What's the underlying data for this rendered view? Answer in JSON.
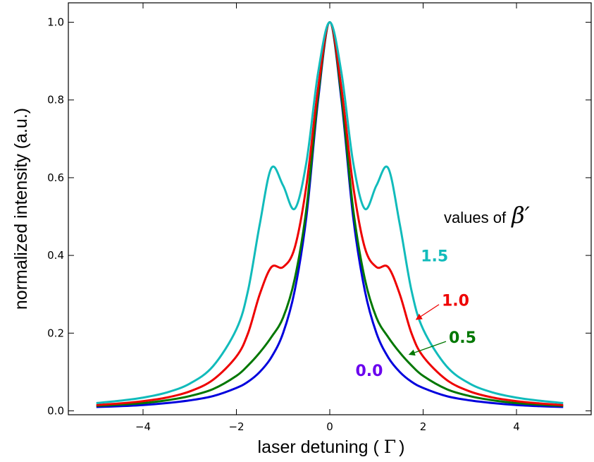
{
  "chart_data": {
    "type": "line",
    "xlabel": {
      "prefix": "laser detuning ( ",
      "symbol": "Γ",
      "suffix": ")"
    },
    "ylabel": "normalized intensity (a.u.)",
    "xlim": [
      -5.6,
      5.6
    ],
    "ylim": [
      -0.01,
      1.05
    ],
    "xticks": [
      -4,
      -2,
      0,
      2,
      4
    ],
    "xtick_labels": [
      "−4",
      "−2",
      "0",
      "2",
      "4"
    ],
    "yticks": [
      0.0,
      0.2,
      0.4,
      0.6,
      0.8,
      1.0
    ],
    "ytick_labels": [
      "0.0",
      "0.2",
      "0.4",
      "0.6",
      "0.8",
      "1.0"
    ],
    "grid": false,
    "legend_title": {
      "text": "values of",
      "symbol": "β′"
    },
    "series": [
      {
        "name": "0.0",
        "color": "#0000dd",
        "x": [
          -5.0,
          -4.5,
          -4.0,
          -3.5,
          -3.0,
          -2.5,
          -2.0,
          -1.75,
          -1.5,
          -1.25,
          -1.0,
          -0.75,
          -0.5,
          -0.25,
          0.0,
          0.25,
          0.5,
          0.75,
          1.0,
          1.25,
          1.5,
          1.75,
          2.0,
          2.5,
          3.0,
          3.5,
          4.0,
          4.5,
          5.0
        ],
        "y": [
          0.01,
          0.012,
          0.015,
          0.02,
          0.027,
          0.038,
          0.059,
          0.075,
          0.1,
          0.138,
          0.2,
          0.31,
          0.5,
          0.8,
          1.0,
          0.8,
          0.5,
          0.31,
          0.2,
          0.138,
          0.1,
          0.075,
          0.059,
          0.038,
          0.027,
          0.02,
          0.015,
          0.012,
          0.01
        ]
      },
      {
        "name": "0.5",
        "color": "#007700",
        "x": [
          -5.0,
          -4.5,
          -4.0,
          -3.5,
          -3.0,
          -2.5,
          -2.0,
          -1.75,
          -1.5,
          -1.25,
          -1.0,
          -0.75,
          -0.5,
          -0.25,
          0.0,
          0.25,
          0.5,
          0.75,
          1.0,
          1.25,
          1.5,
          1.75,
          2.0,
          2.5,
          3.0,
          3.5,
          4.0,
          4.5,
          5.0
        ],
        "y": [
          0.013,
          0.016,
          0.02,
          0.027,
          0.038,
          0.056,
          0.09,
          0.117,
          0.15,
          0.19,
          0.24,
          0.34,
          0.52,
          0.81,
          1.0,
          0.81,
          0.52,
          0.34,
          0.24,
          0.19,
          0.15,
          0.117,
          0.09,
          0.056,
          0.038,
          0.027,
          0.02,
          0.016,
          0.013
        ]
      },
      {
        "name": "1.0",
        "color": "#ee0000",
        "x": [
          -5.0,
          -4.5,
          -4.0,
          -3.5,
          -3.0,
          -2.5,
          -2.0,
          -1.75,
          -1.5,
          -1.25,
          -1.0,
          -0.75,
          -0.5,
          -0.25,
          0.0,
          0.25,
          0.5,
          0.75,
          1.0,
          1.25,
          1.5,
          1.75,
          2.0,
          2.5,
          3.0,
          3.5,
          4.0,
          4.5,
          5.0
        ],
        "y": [
          0.015,
          0.019,
          0.025,
          0.034,
          0.05,
          0.08,
          0.14,
          0.2,
          0.3,
          0.37,
          0.37,
          0.42,
          0.58,
          0.83,
          1.0,
          0.83,
          0.58,
          0.42,
          0.37,
          0.37,
          0.3,
          0.2,
          0.14,
          0.08,
          0.05,
          0.034,
          0.025,
          0.019,
          0.015
        ]
      },
      {
        "name": "1.5",
        "color": "#11bbbb",
        "x": [
          -5.0,
          -4.5,
          -4.0,
          -3.5,
          -3.0,
          -2.5,
          -2.0,
          -1.75,
          -1.5,
          -1.25,
          -1.0,
          -0.75,
          -0.5,
          -0.25,
          0.0,
          0.25,
          0.5,
          0.75,
          1.0,
          1.25,
          1.5,
          1.75,
          2.0,
          2.5,
          3.0,
          3.5,
          4.0,
          4.5,
          5.0
        ],
        "y": [
          0.02,
          0.026,
          0.034,
          0.047,
          0.07,
          0.115,
          0.21,
          0.31,
          0.48,
          0.625,
          0.58,
          0.52,
          0.64,
          0.87,
          1.0,
          0.87,
          0.64,
          0.52,
          0.58,
          0.625,
          0.48,
          0.31,
          0.21,
          0.115,
          0.07,
          0.047,
          0.034,
          0.026,
          0.02
        ]
      }
    ],
    "annotations": [
      {
        "text": "1.5",
        "color": "#11bbbb",
        "at": [
          1.95,
          0.385
        ]
      },
      {
        "text": "1.0",
        "color": "#ee0000",
        "at": [
          2.4,
          0.27
        ],
        "arrow_to": [
          1.85,
          0.235
        ]
      },
      {
        "text": "0.5",
        "color": "#007700",
        "at": [
          2.55,
          0.175
        ],
        "arrow_to": [
          1.7,
          0.145
        ]
      },
      {
        "text": "0.0",
        "color": "#6a00ee",
        "at": [
          0.55,
          0.09
        ]
      }
    ]
  }
}
